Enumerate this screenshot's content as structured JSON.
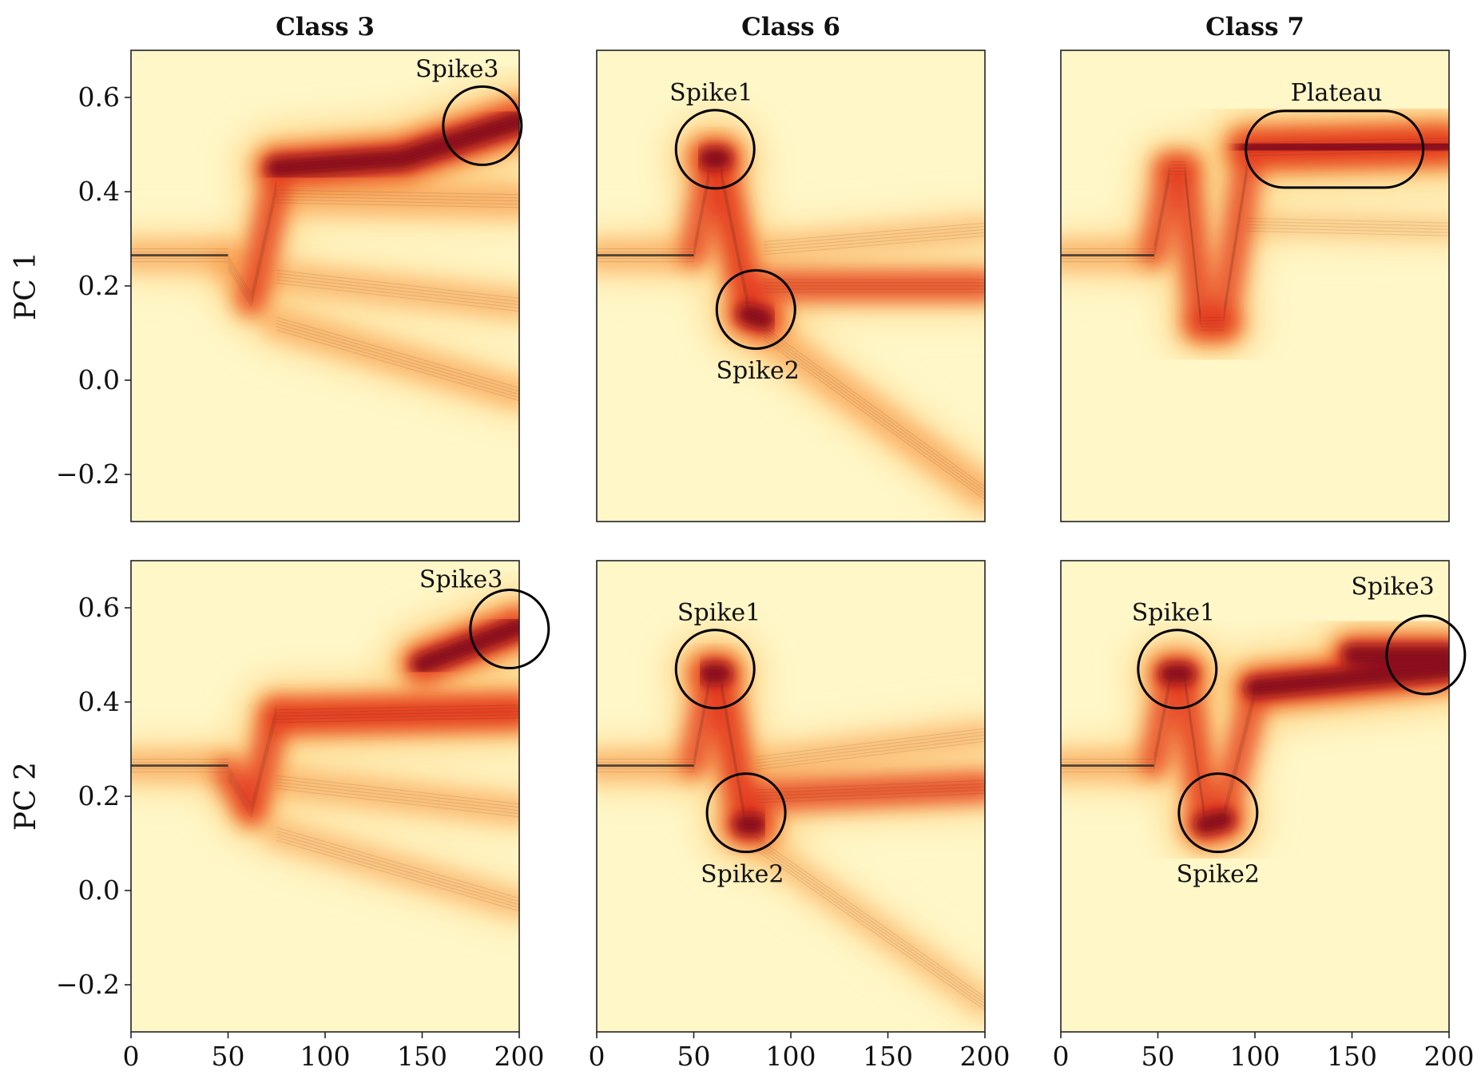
{
  "chart_data": {
    "type": "heatmap",
    "description_free": true,
    "columns": [
      "Class 3",
      "Class 6",
      "Class 7"
    ],
    "rows": [
      "PC 1",
      "PC 2"
    ],
    "xlim": [
      0,
      200
    ],
    "ylim": [
      -0.3,
      0.7
    ],
    "xticks": [
      0,
      50,
      100,
      150,
      200
    ],
    "yticks": [
      -0.2,
      0.0,
      0.2,
      0.4,
      0.6
    ],
    "xtick_labels": [
      "0",
      "50",
      "100",
      "150",
      "200"
    ],
    "ytick_labels": [
      "−0.2",
      "0.0",
      "0.2",
      "0.4",
      "0.6"
    ],
    "colormap": [
      "#fff7c8",
      "#fdd68a",
      "#f89a4c",
      "#e3381e",
      "#8e0a1e"
    ],
    "panels": [
      {
        "row": "PC 1",
        "column": "Class 3",
        "density": [
          {
            "x": [
              0,
              50
            ],
            "y": 0.265,
            "w": 0.4
          },
          {
            "x": [
              50,
              62
            ],
            "y0": 0.25,
            "y1": 0.17,
            "w": 0.45
          },
          {
            "x": [
              62,
              75
            ],
            "y0": 0.17,
            "y1": 0.41,
            "w": 0.55
          },
          {
            "x": [
              75,
              140
            ],
            "y0": 0.45,
            "y1": 0.47,
            "w": 0.95
          },
          {
            "x": [
              140,
              200
            ],
            "y0": 0.47,
            "y1": 0.55,
            "w": 1.0
          },
          {
            "x": [
              75,
              200
            ],
            "y0": 0.39,
            "y1": 0.38,
            "w": 0.45
          },
          {
            "x": [
              75,
              200
            ],
            "y0": 0.22,
            "y1": 0.16,
            "w": 0.35
          },
          {
            "x": [
              75,
              200
            ],
            "y0": 0.12,
            "y1": -0.03,
            "w": 0.4
          }
        ],
        "annotations": [
          {
            "label": "Spike3",
            "shape": "circle",
            "cx": 181,
            "cy": 0.54,
            "labelPos": [
              168,
              0.66
            ]
          }
        ]
      },
      {
        "row": "PC 1",
        "column": "Class 6",
        "density": [
          {
            "x": [
              0,
              50
            ],
            "y": 0.265,
            "w": 0.4
          },
          {
            "x": [
              50,
              58
            ],
            "y0": 0.27,
            "y1": 0.44,
            "w": 0.5
          },
          {
            "x": [
              58,
              64
            ],
            "y0": 0.47,
            "y1": 0.47,
            "w": 1.0
          },
          {
            "x": [
              64,
              78
            ],
            "y0": 0.44,
            "y1": 0.16,
            "w": 0.7
          },
          {
            "x": [
              78,
              86
            ],
            "y0": 0.14,
            "y1": 0.13,
            "w": 1.0
          },
          {
            "x": [
              86,
              200
            ],
            "y0": 0.2,
            "y1": 0.2,
            "w": 0.55
          },
          {
            "x": [
              86,
              200
            ],
            "y0": 0.1,
            "y1": -0.24,
            "w": 0.45
          },
          {
            "x": [
              86,
              200
            ],
            "y0": 0.28,
            "y1": 0.32,
            "w": 0.25
          }
        ],
        "annotations": [
          {
            "label": "Spike1",
            "shape": "circle",
            "cx": 61,
            "cy": 0.49,
            "labelPos": [
              59,
              0.61
            ]
          },
          {
            "label": "Spike2",
            "shape": "circle",
            "cx": 82,
            "cy": 0.15,
            "labelPos": [
              83,
              0.02
            ]
          }
        ]
      },
      {
        "row": "PC 1",
        "column": "Class 7",
        "density": [
          {
            "x": [
              0,
              48
            ],
            "y": 0.265,
            "w": 0.4
          },
          {
            "x": [
              48,
              56
            ],
            "y0": 0.27,
            "y1": 0.44,
            "w": 0.5
          },
          {
            "x": [
              56,
              64
            ],
            "y0": 0.45,
            "y1": 0.45,
            "w": 0.6
          },
          {
            "x": [
              64,
              72
            ],
            "y0": 0.44,
            "y1": 0.13,
            "w": 0.55
          },
          {
            "x": [
              72,
              84
            ],
            "y0": 0.12,
            "y1": 0.12,
            "w": 0.75
          },
          {
            "x": [
              84,
              96
            ],
            "y0": 0.14,
            "y1": 0.45,
            "w": 0.5
          },
          {
            "x": [
              96,
              200
            ],
            "y0": 0.49,
            "y1": 0.5,
            "w": 1.0
          },
          {
            "x": [
              96,
              200
            ],
            "y0": 0.33,
            "y1": 0.32,
            "w": 0.15
          }
        ],
        "annotations": [
          {
            "label": "Plateau",
            "shape": "stadium",
            "cx": 141,
            "cy": 0.49,
            "labelPos": [
              142,
              0.61
            ]
          }
        ]
      },
      {
        "row": "PC 2",
        "column": "Class 3",
        "density": [
          {
            "x": [
              0,
              50
            ],
            "y": 0.265,
            "w": 0.4
          },
          {
            "x": [
              50,
              62
            ],
            "y0": 0.25,
            "y1": 0.17,
            "w": 0.55
          },
          {
            "x": [
              62,
              75
            ],
            "y0": 0.17,
            "y1": 0.38,
            "w": 0.55
          },
          {
            "x": [
              75,
              200
            ],
            "y0": 0.37,
            "y1": 0.38,
            "w": 0.8
          },
          {
            "x": [
              150,
              200
            ],
            "y0": 0.48,
            "y1": 0.56,
            "w": 0.9
          },
          {
            "x": [
              75,
              200
            ],
            "y0": 0.23,
            "y1": 0.17,
            "w": 0.35
          },
          {
            "x": [
              75,
              200
            ],
            "y0": 0.12,
            "y1": -0.03,
            "w": 0.3
          }
        ],
        "annotations": [
          {
            "label": "Spike3",
            "shape": "circle",
            "cx": 195,
            "cy": 0.555,
            "labelPos": [
              170,
              0.66
            ]
          }
        ]
      },
      {
        "row": "PC 2",
        "column": "Class 6",
        "density": [
          {
            "x": [
              0,
              50
            ],
            "y": 0.265,
            "w": 0.4
          },
          {
            "x": [
              50,
              58
            ],
            "y0": 0.27,
            "y1": 0.44,
            "w": 0.5
          },
          {
            "x": [
              58,
              64
            ],
            "y0": 0.46,
            "y1": 0.46,
            "w": 1.0
          },
          {
            "x": [
              64,
              76
            ],
            "y0": 0.44,
            "y1": 0.16,
            "w": 0.7
          },
          {
            "x": [
              76,
              82
            ],
            "y0": 0.14,
            "y1": 0.14,
            "w": 1.0
          },
          {
            "x": [
              82,
              200
            ],
            "y0": 0.2,
            "y1": 0.22,
            "w": 0.55
          },
          {
            "x": [
              82,
              200
            ],
            "y0": 0.1,
            "y1": -0.24,
            "w": 0.25
          },
          {
            "x": [
              82,
              200
            ],
            "y0": 0.27,
            "y1": 0.33,
            "w": 0.3
          }
        ],
        "annotations": [
          {
            "label": "Spike1",
            "shape": "circle",
            "cx": 61,
            "cy": 0.47,
            "labelPos": [
              63,
              0.59
            ]
          },
          {
            "label": "Spike2",
            "shape": "circle",
            "cx": 77,
            "cy": 0.165,
            "labelPos": [
              75,
              0.035
            ]
          }
        ]
      },
      {
        "row": "PC 2",
        "column": "Class 7",
        "density": [
          {
            "x": [
              0,
              48
            ],
            "y": 0.265,
            "w": 0.4
          },
          {
            "x": [
              48,
              56
            ],
            "y0": 0.27,
            "y1": 0.44,
            "w": 0.5
          },
          {
            "x": [
              56,
              64
            ],
            "y0": 0.46,
            "y1": 0.46,
            "w": 0.9
          },
          {
            "x": [
              64,
              74
            ],
            "y0": 0.44,
            "y1": 0.16,
            "w": 0.6
          },
          {
            "x": [
              74,
              84
            ],
            "y0": 0.14,
            "y1": 0.15,
            "w": 0.9
          },
          {
            "x": [
              84,
              100
            ],
            "y0": 0.16,
            "y1": 0.42,
            "w": 0.5
          },
          {
            "x": [
              100,
              200
            ],
            "y0": 0.43,
            "y1": 0.47,
            "w": 0.9
          },
          {
            "x": [
              150,
              200
            ],
            "y0": 0.5,
            "y1": 0.5,
            "w": 0.85
          }
        ],
        "annotations": [
          {
            "label": "Spike1",
            "shape": "circle",
            "cx": 60,
            "cy": 0.47,
            "labelPos": [
              58,
              0.59
            ]
          },
          {
            "label": "Spike2",
            "shape": "circle",
            "cx": 81,
            "cy": 0.165,
            "labelPos": [
              81,
              0.035
            ]
          },
          {
            "label": "Spike3",
            "shape": "circle",
            "cx": 188,
            "cy": 0.5,
            "labelPos": [
              171,
              0.645
            ]
          }
        ]
      }
    ]
  }
}
